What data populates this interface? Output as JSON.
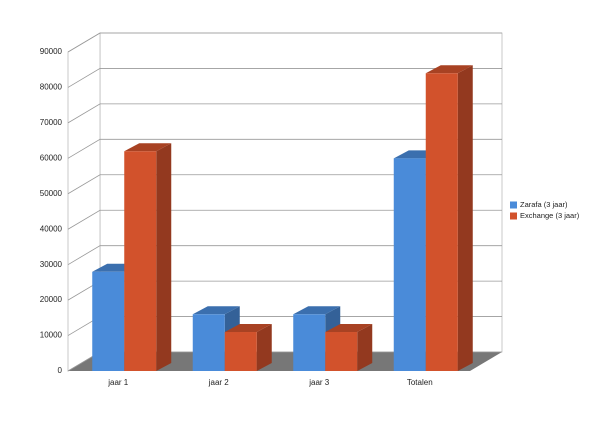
{
  "chart_data": {
    "type": "bar3d",
    "categories": [
      "jaar 1",
      "jaar 2",
      "jaar 3",
      "Totalen"
    ],
    "series": [
      {
        "name": "Zarafa (3 jaar)",
        "color": "#4a8bd9",
        "values": [
          28000,
          16000,
          16000,
          60000
        ]
      },
      {
        "name": "Exchange (3 jaar)",
        "color": "#d2522c",
        "values": [
          62000,
          11000,
          11000,
          84000
        ]
      }
    ],
    "ylim": [
      0,
      90000
    ],
    "yticks": [
      0,
      10000,
      20000,
      30000,
      40000,
      50000,
      60000,
      70000,
      80000,
      90000
    ],
    "grid": true,
    "legend": "right"
  }
}
